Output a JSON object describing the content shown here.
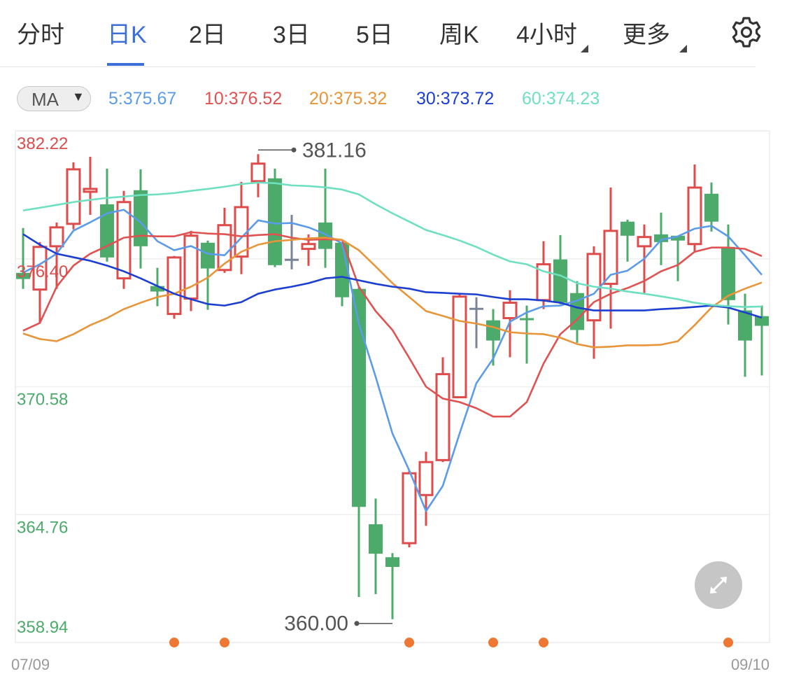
{
  "tabs": [
    {
      "label": "分时",
      "active": false
    },
    {
      "label": "日K",
      "active": true
    },
    {
      "label": "2日",
      "active": false
    },
    {
      "label": "3日",
      "active": false
    },
    {
      "label": "5日",
      "active": false
    },
    {
      "label": "周K",
      "active": false
    },
    {
      "label": "4小时",
      "active": false,
      "has_dropdown": true
    },
    {
      "label": "更多",
      "active": false,
      "has_dropdown": true
    }
  ],
  "settings_icon": "gear-icon",
  "indicator": {
    "selector_label": "MA",
    "dropdown_icon": "caret-down-icon"
  },
  "ma_legend": [
    {
      "label": "5:375.67",
      "color": "#5b9be8"
    },
    {
      "label": "10:376.52",
      "color": "#e05252"
    },
    {
      "label": "20:375.32",
      "color": "#e8953a"
    },
    {
      "label": "30:373.72",
      "color": "#1c3fd1"
    },
    {
      "label": "60:374.23",
      "color": "#6ee0c0"
    }
  ],
  "expand_icon": "expand-arrows-icon",
  "colors": {
    "up": "#dd4b4b",
    "down": "#4caa6a",
    "flat": "#7a8499",
    "accent": "#3d6fd8",
    "marker": "#ee7733"
  },
  "chart_data": {
    "type": "candlestick",
    "ylim": [
      358.94,
      382.22
    ],
    "y_ticks": [
      {
        "label": "382.22",
        "value": 382.22,
        "color": "#dd4b4b"
      },
      {
        "label": "376.40",
        "value": 376.4,
        "color": "#dd4b4b"
      },
      {
        "label": "370.58",
        "value": 370.58,
        "color": "#4caa6a"
      },
      {
        "label": "364.76",
        "value": 364.76,
        "color": "#4caa6a"
      },
      {
        "label": "358.94",
        "value": 358.94,
        "color": "#4caa6a"
      }
    ],
    "x_labels": {
      "start": "07/09",
      "end": "09/10"
    },
    "grid": true,
    "max_annotation": {
      "label": "381.16",
      "value": 381.16,
      "index": 14
    },
    "min_annotation": {
      "label": "360.00",
      "value": 360.0,
      "index": 22
    },
    "event_markers": [
      9,
      12,
      23,
      28,
      31,
      42
    ],
    "ohlc": [
      [
        375.76,
        377.8,
        375.03,
        375.48
      ],
      [
        375.0,
        377.16,
        373.47,
        376.94
      ],
      [
        376.97,
        378.05,
        375.03,
        377.83
      ],
      [
        377.99,
        380.79,
        377.74,
        380.47
      ],
      [
        379.45,
        381.04,
        378.4,
        379.58
      ],
      [
        378.88,
        380.5,
        376.27,
        376.46
      ],
      [
        375.51,
        379.49,
        375.03,
        378.98
      ],
      [
        379.52,
        380.47,
        375.96,
        376.97
      ],
      [
        375.16,
        375.99,
        374.24,
        374.91
      ],
      [
        373.89,
        376.53,
        373.67,
        376.46
      ],
      [
        374.59,
        377.67,
        374.02,
        377.45
      ],
      [
        377.13,
        377.23,
        374.08,
        375.96
      ],
      [
        375.89,
        378.72,
        375.76,
        377.93
      ],
      [
        376.5,
        379.9,
        375.7,
        378.75
      ],
      [
        379.93,
        381.16,
        379.2,
        380.73
      ],
      [
        380.06,
        380.5,
        376.02,
        376.11
      ],
      [
        376.4,
        378.4,
        375.92,
        376.4
      ],
      [
        376.85,
        377.51,
        376.08,
        377.07
      ],
      [
        378.05,
        380.5,
        375.99,
        376.85
      ],
      [
        377.13,
        377.13,
        374.24,
        374.65
      ],
      [
        375.03,
        375.1,
        361.01,
        365.11
      ],
      [
        364.32,
        365.49,
        361.14,
        362.98
      ],
      [
        362.82,
        363.01,
        360.0,
        362.38
      ],
      [
        363.46,
        366.77,
        363.27,
        366.64
      ],
      [
        365.65,
        367.62,
        364.25,
        367.15
      ],
      [
        367.24,
        371.92,
        367.15,
        371.15
      ],
      [
        370.1,
        374.78,
        370.1,
        374.68
      ],
      [
        374.17,
        374.65,
        372.33,
        374.17
      ],
      [
        373.6,
        374.11,
        371.54,
        372.68
      ],
      [
        373.7,
        374.97,
        371.92,
        374.4
      ],
      [
        373.7,
        374.27,
        371.63,
        373.67
      ],
      [
        374.52,
        377.2,
        374.11,
        376.15
      ],
      [
        376.37,
        377.48,
        374.33,
        374.4
      ],
      [
        374.84,
        375.38,
        372.58,
        373.16
      ],
      [
        373.6,
        376.97,
        371.85,
        376.62
      ],
      [
        375.26,
        379.64,
        373.22,
        377.67
      ],
      [
        378.09,
        378.18,
        376.27,
        377.45
      ],
      [
        376.97,
        377.96,
        374.84,
        377.39
      ],
      [
        377.51,
        378.5,
        376.11,
        377.16
      ],
      [
        377.45,
        377.45,
        375.38,
        377.23
      ],
      [
        377.07,
        380.69,
        376.72,
        379.64
      ],
      [
        379.36,
        379.87,
        377.64,
        378.09
      ],
      [
        376.94,
        377.96,
        373.41,
        374.52
      ],
      [
        374.05,
        374.81,
        371.03,
        372.68
      ],
      [
        373.79,
        374.27,
        371.09,
        373.35
      ]
    ],
    "series": [
      {
        "name": "5",
        "color": "#5b9be8",
        "values": [
          375.77,
          376.15,
          376.63,
          377.68,
          378.06,
          378.47,
          378.63,
          378.06,
          377.2,
          376.79,
          376.98,
          376.63,
          376.56,
          377.36,
          378.15,
          378.0,
          378.03,
          377.83,
          377.52,
          377.1,
          373.45,
          371.03,
          368.45,
          366.77,
          364.92,
          366.07,
          368.45,
          370.74,
          371.86,
          373.54,
          373.96,
          374.24,
          374.27,
          374.5,
          374.81,
          375.67,
          375.86,
          376.4,
          377.26,
          377.42,
          377.77,
          377.9,
          377.42,
          376.56,
          375.67
        ]
      },
      {
        "name": "10",
        "color": "#e05252",
        "values": [
          373.13,
          373.48,
          375.13,
          376.09,
          376.63,
          376.98,
          377.36,
          377.45,
          377.42,
          377.42,
          377.61,
          377.55,
          377.52,
          377.42,
          377.48,
          377.52,
          377.36,
          377.26,
          377.29,
          377.26,
          375.13,
          374.02,
          373.16,
          371.89,
          370.58,
          370.04,
          369.88,
          369.6,
          369.22,
          369.22,
          369.88,
          371.63,
          372.97,
          373.64,
          374.43,
          374.81,
          375.07,
          375.39,
          375.83,
          376.12,
          376.72,
          376.91,
          376.91,
          376.85,
          376.52
        ]
      },
      {
        "name": "20",
        "color": "#e8953a",
        "values": [
          373.0,
          372.75,
          372.65,
          372.97,
          373.38,
          373.7,
          374.11,
          374.4,
          374.66,
          374.81,
          375.13,
          375.54,
          376.18,
          376.72,
          377.04,
          377.2,
          377.26,
          377.33,
          377.36,
          377.26,
          376.79,
          376.05,
          375.29,
          374.66,
          374.02,
          373.8,
          373.57,
          373.45,
          373.29,
          373.06,
          373.0,
          372.97,
          372.81,
          372.52,
          372.37,
          372.4,
          372.46,
          372.46,
          372.49,
          372.65,
          373.38,
          374.18,
          374.72,
          375.04,
          375.32
        ]
      },
      {
        "name": "30",
        "color": "#1c3fd1",
        "values": [
          377.52,
          377.04,
          376.63,
          376.47,
          376.31,
          376.09,
          375.83,
          375.51,
          375.16,
          374.81,
          374.56,
          374.34,
          374.27,
          374.43,
          374.81,
          375.0,
          375.13,
          375.29,
          375.51,
          375.58,
          375.42,
          375.26,
          375.13,
          375.04,
          374.88,
          374.85,
          374.81,
          374.78,
          374.66,
          374.56,
          374.56,
          374.5,
          374.4,
          374.18,
          374.05,
          374.05,
          374.05,
          374.05,
          374.11,
          374.15,
          374.21,
          374.27,
          374.18,
          373.96,
          373.72
        ]
      },
      {
        "name": "60",
        "color": "#6ee0c0",
        "values": [
          378.6,
          378.72,
          378.85,
          378.98,
          379.08,
          379.17,
          379.23,
          379.3,
          379.33,
          379.39,
          379.49,
          379.58,
          379.68,
          379.8,
          379.87,
          379.84,
          379.74,
          379.71,
          379.65,
          379.55,
          379.33,
          378.88,
          378.47,
          378.09,
          377.71,
          377.48,
          377.23,
          376.94,
          376.59,
          376.28,
          376.15,
          375.83,
          375.64,
          375.29,
          375.13,
          375.04,
          374.91,
          374.81,
          374.69,
          374.56,
          374.4,
          374.3,
          374.24,
          374.21,
          374.23
        ]
      }
    ]
  }
}
